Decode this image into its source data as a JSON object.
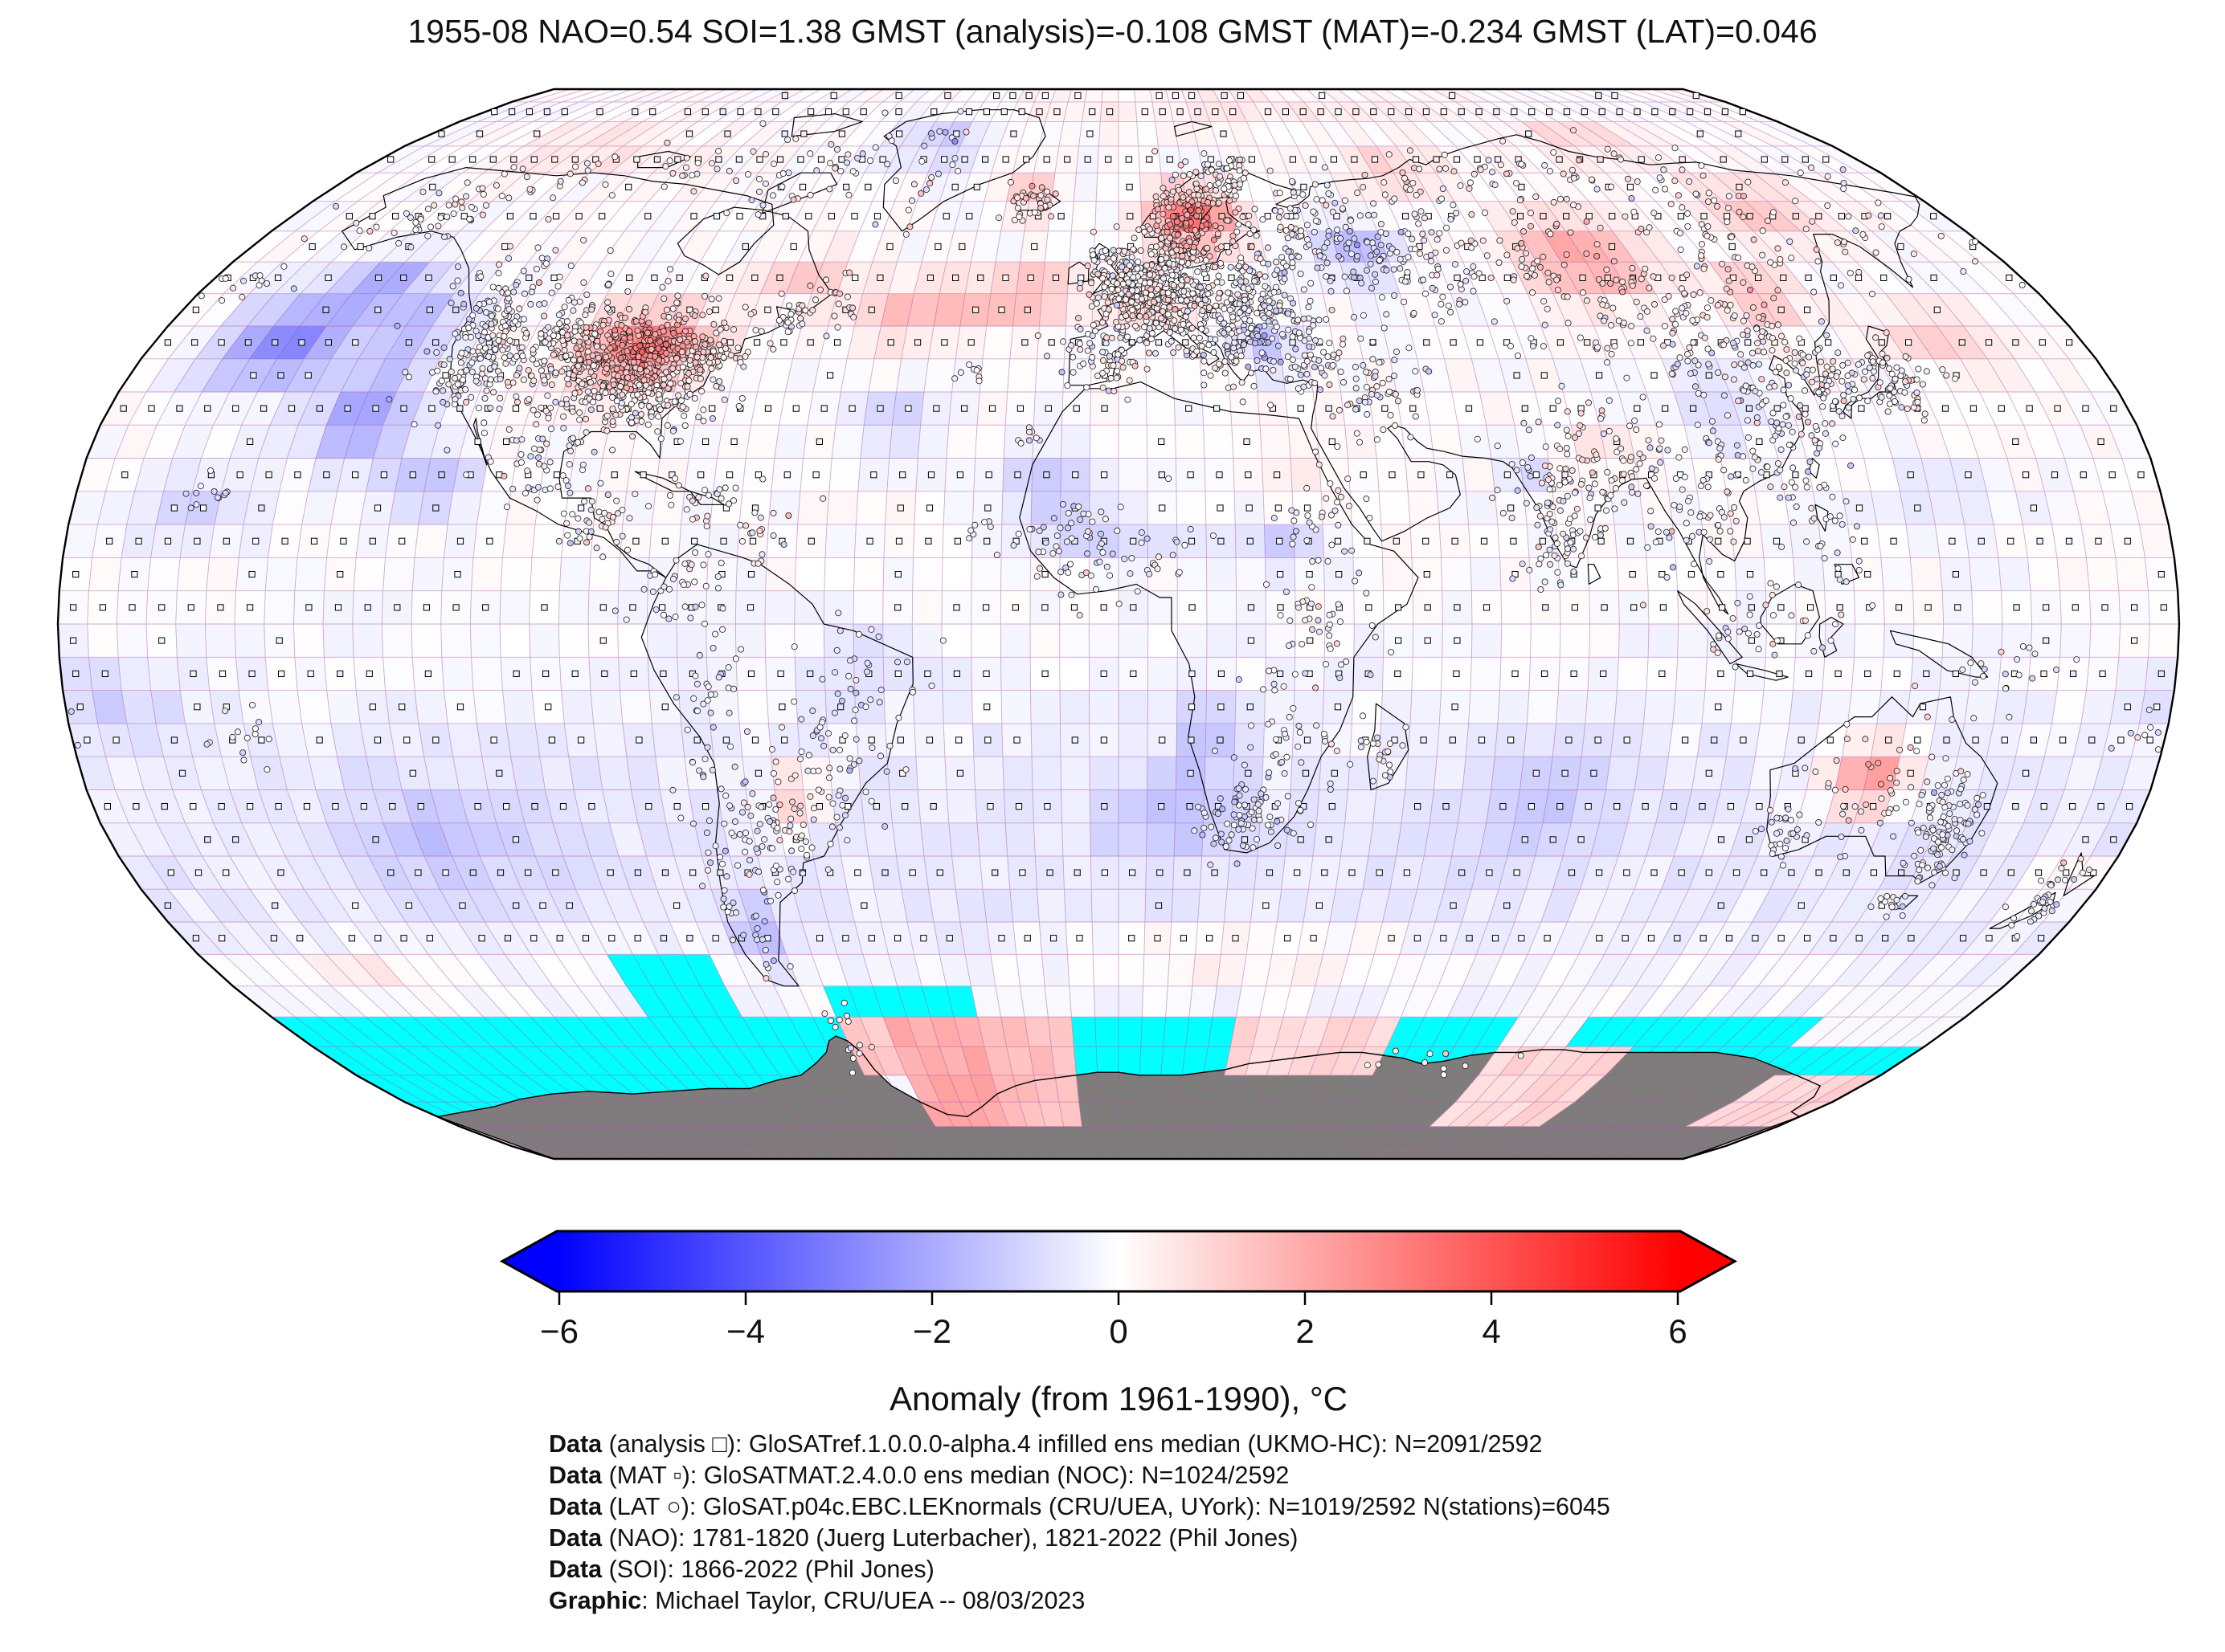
{
  "title": "1955-08 NAO=0.54 SOI=1.38 GMST (analysis)=-0.108 GMST (MAT)=-0.234 GMST (LAT)=0.046",
  "colorbar": {
    "label": "Anomaly (from 1961-1990), °C",
    "tick_labels": [
      "−6",
      "−4",
      "−2",
      "0",
      "2",
      "4",
      "6"
    ],
    "tick_values": [
      -6,
      -4,
      -2,
      0,
      2,
      4,
      6
    ],
    "range": [
      -6,
      6
    ],
    "colors": {
      "negative": "#0000ff",
      "zero": "#ffffff",
      "positive": "#ff0000"
    }
  },
  "footnotes": [
    {
      "bold": "Data",
      "rest": " (analysis □): GloSATref.1.0.0.0-alpha.4 infilled ens median (UKMO-HC): N=2091/2592"
    },
    {
      "bold": "Data",
      "rest": " (MAT ▫): GloSATMAT.2.4.0.0 ens median (NOC): N=1024/2592"
    },
    {
      "bold": "Data",
      "rest": " (LAT ○): GloSAT.p04c.EBC.LEKnormals (CRU/UEA, UYork): N=1019/2592 N(stations)=6045"
    },
    {
      "bold": "Data",
      "rest": " (NAO): 1781-1820 (Juerg Luterbacher), 1821-2022 (Phil Jones)"
    },
    {
      "bold": "Data",
      "rest": " (SOI): 1866-2022 (Phil Jones)"
    },
    {
      "bold": "Graphic",
      "rest": ": Michael Taylor, CRU/UEA -- 08/03/2023"
    }
  ],
  "chart_data": {
    "type": "map",
    "projection": "robinson",
    "grid_resolution_deg": 5,
    "date": "1955-08",
    "indices": {
      "NAO": 0.54,
      "SOI": 1.38,
      "GMST_analysis": -0.108,
      "GMST_MAT": -0.234,
      "GMST_LAT": 0.046
    },
    "datasets": [
      {
        "label": "analysis",
        "symbol": "□",
        "source": "GloSATref.1.0.0.0-alpha.4 infilled ens median (UKMO-HC)",
        "coverage": "N=2091/2592"
      },
      {
        "label": "MAT",
        "symbol": "▫",
        "source": "GloSATMAT.2.4.0.0 ens median (NOC)",
        "coverage": "N=1024/2592"
      },
      {
        "label": "LAT",
        "symbol": "○",
        "source": "GloSAT.p04c.EBC.LEKnormals (CRU/UEA, UYork)",
        "coverage": "N=1019/2592",
        "stations": 6045
      },
      {
        "label": "NAO",
        "source": "1781-1820 (Juerg Luterbacher), 1821-2022 (Phil Jones)"
      },
      {
        "label": "SOI",
        "source": "1866-2022 (Phil Jones)"
      }
    ],
    "legend_colors": {
      "missing_data": "#00ffff",
      "antarctica_masked": "#7f7c7c",
      "graticule": "#a855a8"
    },
    "anomaly_field_blobs": [
      [
        3.4,
        -88,
        42,
        11,
        5.5
      ],
      [
        1.5,
        -62,
        53,
        9,
        4
      ],
      [
        1.6,
        -38,
        47,
        14,
        4.5
      ],
      [
        1.7,
        -18,
        50,
        10,
        4
      ],
      [
        3.6,
        16,
        62,
        9,
        5
      ],
      [
        1.0,
        5,
        48,
        7,
        4
      ],
      [
        2.3,
        95,
        56,
        13,
        6.5
      ],
      [
        1.6,
        125,
        50,
        8,
        5
      ],
      [
        1.4,
        142,
        64,
        12,
        5
      ],
      [
        1.3,
        155,
        44,
        10,
        5
      ],
      [
        0.8,
        83,
        26,
        6,
        4
      ],
      [
        2.8,
        130,
        -23,
        7,
        5.5
      ],
      [
        1.5,
        -57,
        -26,
        5,
        5
      ],
      [
        1.4,
        -20,
        66,
        5,
        3.5
      ],
      [
        1.1,
        65,
        71,
        12,
        4
      ],
      [
        1.0,
        120,
        76,
        18,
        4
      ],
      [
        0.9,
        -130,
        75,
        22,
        4
      ],
      [
        0.5,
        30,
        84,
        60,
        5
      ],
      [
        0.9,
        25,
        -50,
        30,
        3.5
      ],
      [
        0.7,
        -150,
        -53,
        18,
        4
      ],
      [
        0.8,
        172,
        -38,
        7,
        4
      ],
      [
        0.6,
        32,
        22,
        6,
        5
      ],
      [
        -2.7,
        -155,
        43,
        13,
        7
      ],
      [
        -2.3,
        -134,
        31,
        9,
        7
      ],
      [
        -1.7,
        -119,
        21,
        7,
        5
      ],
      [
        -1.8,
        -145,
        52,
        9,
        4.5
      ],
      [
        -1.6,
        -132,
        45,
        8,
        6
      ],
      [
        -1.6,
        49,
        57,
        8,
        5.5
      ],
      [
        -1.3,
        28,
        42,
        6,
        4
      ],
      [
        -0.9,
        106,
        33,
        8,
        6
      ],
      [
        -1.1,
        -69,
        -46,
        5,
        6
      ],
      [
        -0.8,
        8,
        -30,
        12,
        8
      ],
      [
        -0.8,
        75,
        -28,
        14,
        8
      ],
      [
        -0.9,
        -120,
        -32,
        18,
        9
      ],
      [
        -1.1,
        -12,
        21,
        9,
        6
      ],
      [
        -1.2,
        -45,
        76,
        12,
        5
      ],
      [
        -0.6,
        140,
        18,
        13,
        6
      ],
      [
        -0.8,
        -172,
        -12,
        11,
        6
      ],
      [
        -1.0,
        -38,
        31,
        8,
        5
      ],
      [
        -1.1,
        28,
        12,
        7,
        4
      ],
      [
        -0.8,
        0,
        13,
        15,
        3.5
      ],
      [
        -0.9,
        15,
        -18,
        6,
        8
      ],
      [
        -0.9,
        71,
        23,
        4,
        5
      ],
      [
        -0.6,
        -42,
        -6,
        9,
        6
      ],
      [
        -0.9,
        -160,
        18,
        12,
        6
      ]
    ],
    "missing_cyan_regions": [
      [
        -180,
        -160,
        -80,
        -57.5
      ],
      [
        -160,
        -135,
        -80,
        -60
      ],
      [
        -135,
        -100,
        -80,
        -57.5
      ],
      [
        -100,
        -90,
        -80,
        -50
      ],
      [
        -90,
        -80,
        -80,
        -47.5
      ],
      [
        -80,
        -62,
        -80,
        -57.5
      ],
      [
        -62,
        -32,
        -62.5,
        -52.5
      ],
      [
        -12,
        27,
        -80,
        -57.5
      ],
      [
        27,
        62,
        -80,
        -70
      ],
      [
        62,
        85,
        -80,
        -57.5
      ],
      [
        100,
        115,
        -80,
        -57.5
      ],
      [
        115,
        150,
        -80,
        -57.5
      ],
      [
        150,
        180,
        -80,
        -62.5
      ]
    ],
    "infilled_pink_regions": [
      [
        -62,
        -50,
        -72,
        -58,
        1.3
      ],
      [
        -50,
        -30,
        -80,
        -58,
        2.0
      ],
      [
        -30,
        -12,
        -78,
        -60,
        1.5
      ],
      [
        27,
        62,
        -70,
        -57.5,
        0.9
      ],
      [
        85,
        115,
        -78,
        -62.5,
        0.9
      ],
      [
        157,
        180,
        -80,
        -70,
        1.0
      ]
    ],
    "white_gap_regions": [
      [
        -32,
        -12,
        -60,
        -52.5
      ],
      [
        85,
        100,
        -62.5,
        -55
      ],
      [
        150,
        180,
        -62.5,
        -52.5
      ]
    ],
    "station_clusters": [
      [
        -85,
        39,
        7,
        4.5,
        550
      ],
      [
        -100,
        41,
        6,
        5,
        250
      ],
      [
        -117,
        40,
        5,
        5,
        160
      ],
      [
        -120,
        50,
        6,
        4,
        70
      ],
      [
        -148,
        62,
        7,
        4,
        50
      ],
      [
        -95,
        70,
        14,
        4,
        35
      ],
      [
        -100,
        25,
        5,
        4,
        60
      ],
      [
        -90,
        16,
        4,
        3,
        40
      ],
      [
        -70,
        18,
        6,
        3,
        35
      ],
      [
        -75,
        5,
        4,
        3,
        35
      ],
      [
        -70,
        -12,
        3,
        6,
        40
      ],
      [
        -65,
        -33,
        5,
        5,
        70
      ],
      [
        -58,
        -28,
        4,
        4,
        40
      ],
      [
        -48,
        -20,
        5,
        6,
        50
      ],
      [
        -43,
        -8,
        6,
        5,
        30
      ],
      [
        -70,
        -45,
        3,
        5,
        25
      ],
      [
        -20,
        65,
        3,
        1.5,
        35
      ],
      [
        -45,
        68,
        5,
        6,
        20
      ],
      [
        0,
        52,
        4,
        3,
        120
      ],
      [
        -4,
        40,
        4,
        3,
        70
      ],
      [
        8,
        50,
        5,
        4,
        400
      ],
      [
        15,
        60,
        5,
        4,
        180
      ],
      [
        20,
        67,
        5,
        3,
        60
      ],
      [
        25,
        48,
        6,
        4,
        180
      ],
      [
        20,
        42,
        4,
        3,
        90
      ],
      [
        35,
        40,
        6,
        3,
        70
      ],
      [
        45,
        35,
        6,
        4,
        60
      ],
      [
        40,
        58,
        7,
        5,
        120
      ],
      [
        55,
        55,
        8,
        5,
        80
      ],
      [
        75,
        55,
        12,
        6,
        90
      ],
      [
        105,
        55,
        12,
        6,
        70
      ],
      [
        130,
        60,
        12,
        6,
        60
      ],
      [
        160,
        62,
        10,
        5,
        40
      ],
      [
        140,
        37,
        3.5,
        3,
        80
      ],
      [
        128,
        37,
        3,
        2.5,
        40
      ],
      [
        117,
        35,
        7,
        6,
        120
      ],
      [
        110,
        25,
        6,
        4,
        60
      ],
      [
        78,
        22,
        6,
        6,
        110
      ],
      [
        75,
        12,
        3,
        4,
        40
      ],
      [
        90,
        24,
        4,
        3,
        40
      ],
      [
        100,
        15,
        4,
        4,
        40
      ],
      [
        110,
        0,
        8,
        4,
        40
      ],
      [
        122,
        13,
        3,
        4,
        30
      ],
      [
        35,
        0,
        5,
        6,
        45
      ],
      [
        30,
        -15,
        5,
        5,
        40
      ],
      [
        25,
        -28,
        4,
        3,
        60
      ],
      [
        18,
        -30,
        3,
        3,
        25
      ],
      [
        0,
        10,
        8,
        4,
        50
      ],
      [
        -10,
        14,
        5,
        3,
        35
      ],
      [
        35,
        15,
        4,
        4,
        30
      ],
      [
        45,
        -19,
        2,
        3,
        20
      ],
      [
        135,
        -25,
        9,
        6,
        70
      ],
      [
        147,
        -32,
        3,
        4,
        90
      ],
      [
        117,
        -32,
        2,
        2,
        25
      ],
      [
        172,
        -40,
        2.5,
        3.5,
        35
      ],
      [
        150,
        -7,
        6,
        3,
        20
      ],
      [
        -157,
        20,
        2,
        1.5,
        12
      ],
      [
        -150,
        -17,
        4,
        3,
        14
      ],
      [
        178,
        -17,
        3,
        2,
        10
      ],
      [
        -170,
        52,
        6,
        1.5,
        15
      ],
      [
        -27,
        38,
        2,
        1,
        8
      ],
      [
        -16,
        28,
        1.5,
        1,
        8
      ],
      [
        -24,
        15,
        1,
        1,
        6
      ],
      [
        -61,
        14,
        1.5,
        3,
        12
      ],
      [
        65,
        68,
        8,
        3,
        25
      ],
      [
        90,
        70,
        10,
        3,
        25
      ],
      [
        120,
        70,
        10,
        3,
        20
      ],
      [
        -60,
        73,
        8,
        3,
        20
      ],
      [
        -130,
        68,
        8,
        3,
        20
      ],
      [
        28,
        70,
        4,
        2,
        25
      ],
      [
        -75,
        68,
        6,
        3,
        15
      ],
      [
        -55,
        49,
        3,
        2,
        25
      ],
      [
        -63,
        46,
        2,
        2,
        20
      ],
      [
        145,
        -42,
        1.5,
        1.5,
        12
      ],
      [
        115,
        45,
        8,
        4,
        60
      ],
      [
        95,
        45,
        8,
        4,
        40
      ],
      [
        -60,
        -64,
        2,
        3,
        14
      ],
      [
        78,
        -68,
        18,
        1.5,
        10
      ]
    ]
  }
}
